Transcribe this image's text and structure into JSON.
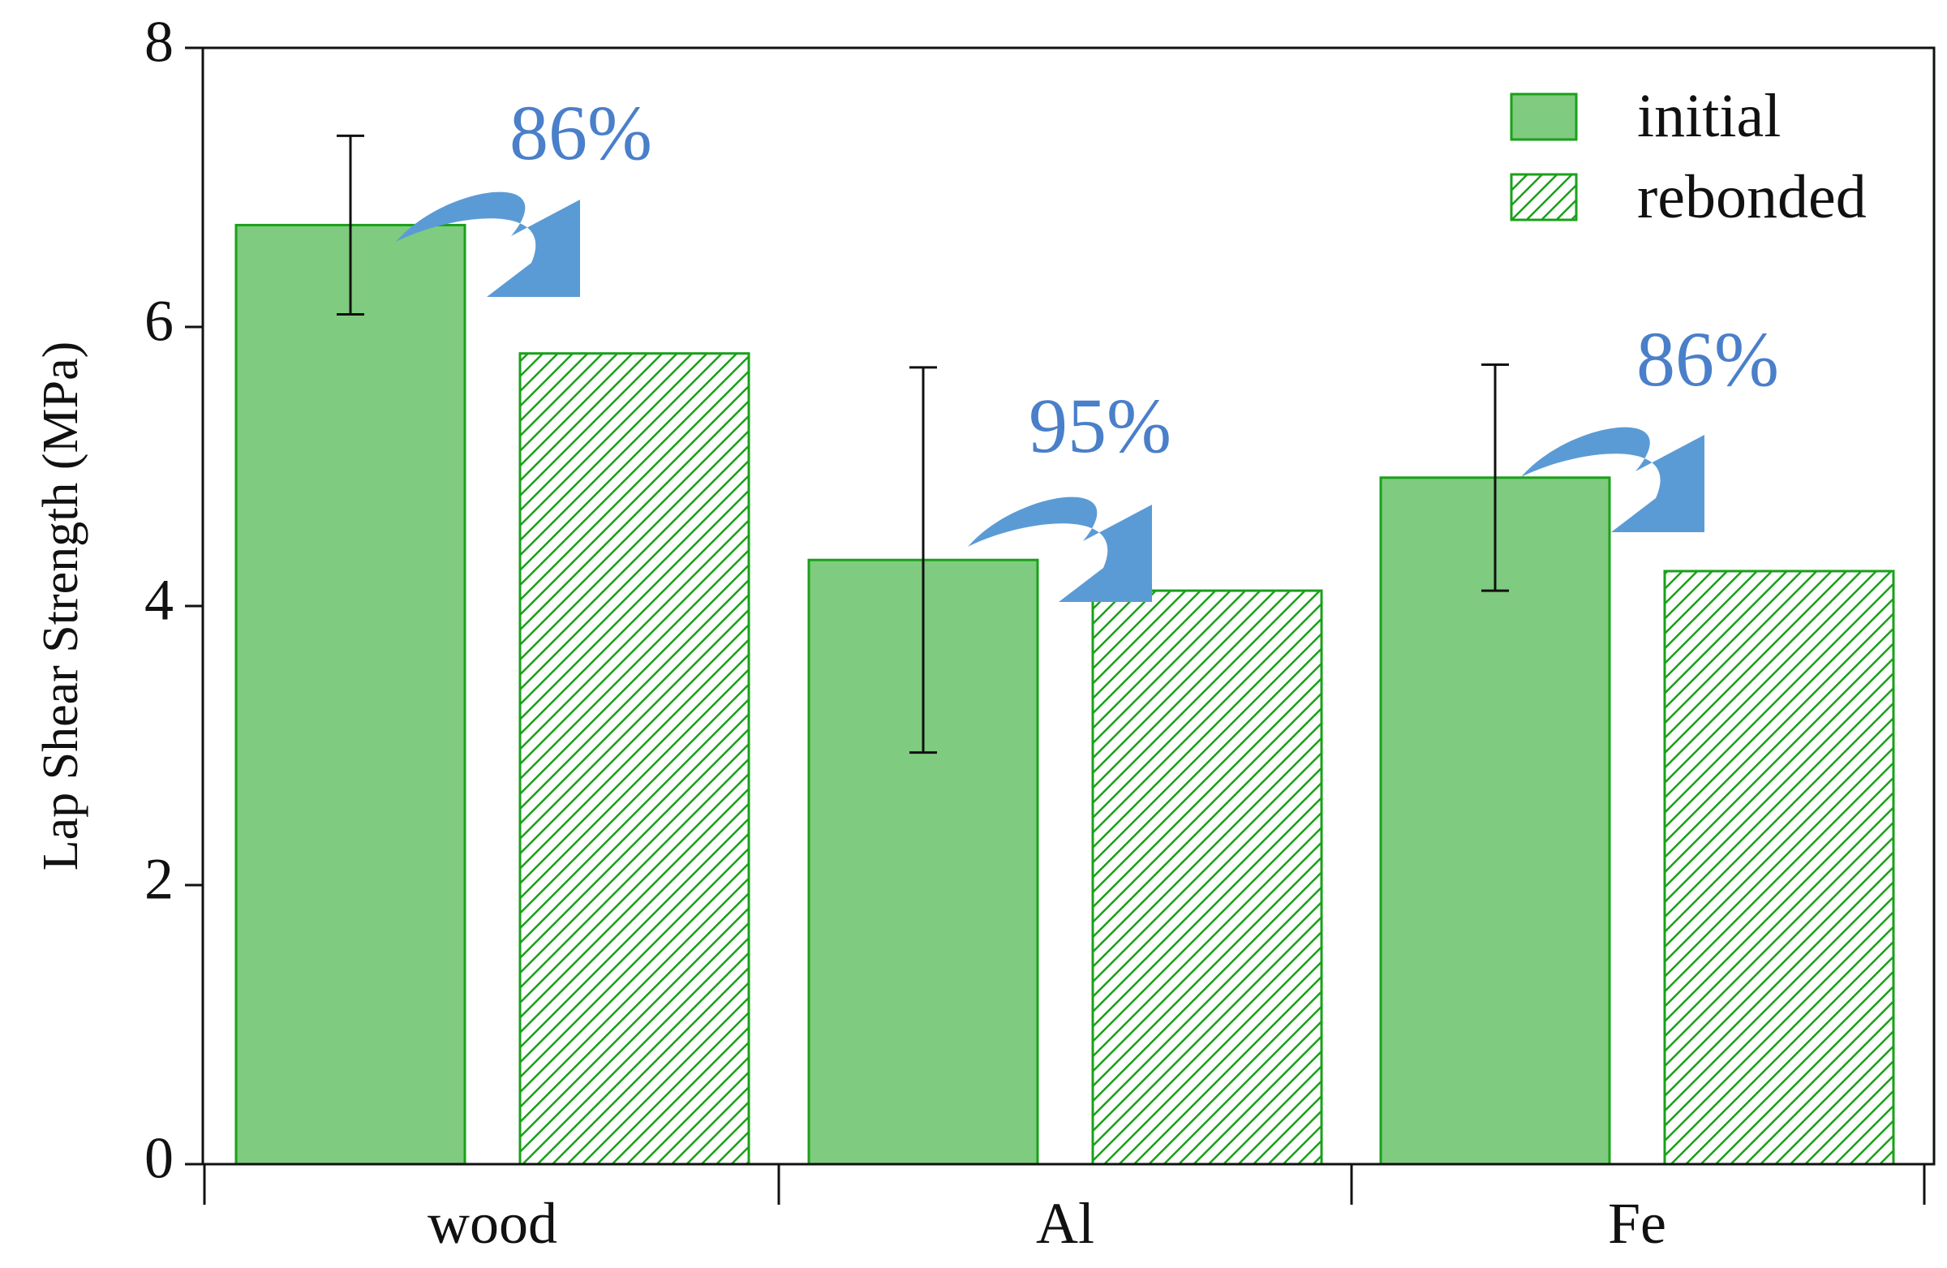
{
  "chart_data": {
    "type": "bar",
    "ylabel": "Lap Shear Strength (MPa)",
    "xlabel": "",
    "ylim": [
      0,
      8
    ],
    "yticks": [
      "0",
      "2",
      "4",
      "6",
      "8"
    ],
    "categories": [
      "wood",
      "Al",
      "Fe"
    ],
    "series": [
      {
        "name": "initial",
        "pattern": "solid",
        "values": [
          6.73,
          4.33,
          4.92
        ],
        "error": [
          0.64,
          1.38,
          0.81
        ]
      },
      {
        "name": "rebonded",
        "pattern": "hatched",
        "values": [
          5.81,
          4.11,
          4.25
        ]
      }
    ],
    "annotations": [
      "86%",
      "95%",
      "86%"
    ],
    "legend_position": "top-right",
    "grid": false,
    "colors": {
      "bar_fill": "#7fcb7f",
      "bar_edge": "#1aa01a",
      "arrow": "#5b9bd5",
      "annotation_text": "#4a7fc9",
      "axis": "#111111"
    }
  }
}
